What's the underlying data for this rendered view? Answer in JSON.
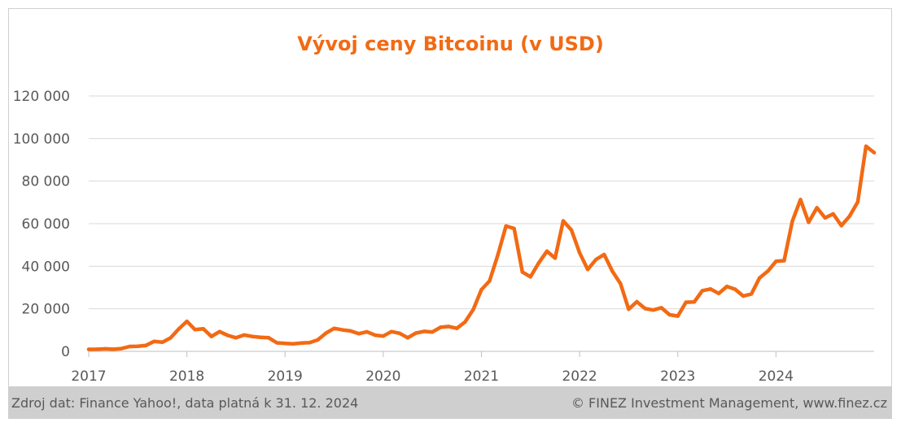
{
  "chart_data": {
    "type": "line",
    "title": "Vývoj ceny Bitcoinu (v USD)",
    "xlabel": "",
    "ylabel": "",
    "ylim": [
      0,
      120000
    ],
    "yticks": [
      0,
      20000,
      40000,
      60000,
      80000,
      100000,
      120000
    ],
    "ytick_labels": [
      "0",
      "20 000",
      "40 000",
      "60 000",
      "80 000",
      "100 000",
      "120 000"
    ],
    "xlim": [
      2017,
      2025
    ],
    "xticks": [
      2017,
      2018,
      2019,
      2020,
      2021,
      2022,
      2023,
      2024
    ],
    "xtick_labels": [
      "2017",
      "2018",
      "2019",
      "2020",
      "2021",
      "2022",
      "2023",
      "2024"
    ],
    "grid": true,
    "legend": "none",
    "series_color": "#f26a14",
    "series": [
      {
        "values": [
          [
            2017.0,
            970
          ],
          [
            2017.083,
            1000
          ],
          [
            2017.167,
            1200
          ],
          [
            2017.25,
            1000
          ],
          [
            2017.333,
            1300
          ],
          [
            2017.417,
            2300
          ],
          [
            2017.5,
            2400
          ],
          [
            2017.583,
            2800
          ],
          [
            2017.667,
            4700
          ],
          [
            2017.75,
            4300
          ],
          [
            2017.833,
            6300
          ],
          [
            2017.917,
            10500
          ],
          [
            2018.0,
            14100
          ],
          [
            2018.083,
            10200
          ],
          [
            2018.167,
            10600
          ],
          [
            2018.25,
            7000
          ],
          [
            2018.333,
            9300
          ],
          [
            2018.417,
            7500
          ],
          [
            2018.5,
            6400
          ],
          [
            2018.583,
            7700
          ],
          [
            2018.667,
            7000
          ],
          [
            2018.75,
            6600
          ],
          [
            2018.833,
            6400
          ],
          [
            2018.917,
            4000
          ],
          [
            2019.0,
            3700
          ],
          [
            2019.083,
            3500
          ],
          [
            2019.167,
            3900
          ],
          [
            2019.25,
            4100
          ],
          [
            2019.333,
            5400
          ],
          [
            2019.417,
            8600
          ],
          [
            2019.5,
            10800
          ],
          [
            2019.583,
            10100
          ],
          [
            2019.667,
            9600
          ],
          [
            2019.75,
            8300
          ],
          [
            2019.833,
            9200
          ],
          [
            2019.917,
            7600
          ],
          [
            2020.0,
            7200
          ],
          [
            2020.083,
            9300
          ],
          [
            2020.167,
            8500
          ],
          [
            2020.25,
            6400
          ],
          [
            2020.333,
            8600
          ],
          [
            2020.417,
            9400
          ],
          [
            2020.5,
            9100
          ],
          [
            2020.583,
            11300
          ],
          [
            2020.667,
            11700
          ],
          [
            2020.75,
            10800
          ],
          [
            2020.833,
            13800
          ],
          [
            2020.917,
            19700
          ],
          [
            2021.0,
            29000
          ],
          [
            2021.083,
            33100
          ],
          [
            2021.167,
            45200
          ],
          [
            2021.25,
            58900
          ],
          [
            2021.333,
            57700
          ],
          [
            2021.417,
            37300
          ],
          [
            2021.5,
            35000
          ],
          [
            2021.583,
            41500
          ],
          [
            2021.667,
            47100
          ],
          [
            2021.75,
            43800
          ],
          [
            2021.833,
            61300
          ],
          [
            2021.917,
            57000
          ],
          [
            2022.0,
            46300
          ],
          [
            2022.083,
            38500
          ],
          [
            2022.167,
            43200
          ],
          [
            2022.25,
            45500
          ],
          [
            2022.333,
            37700
          ],
          [
            2022.417,
            31800
          ],
          [
            2022.5,
            19800
          ],
          [
            2022.583,
            23300
          ],
          [
            2022.667,
            20100
          ],
          [
            2022.75,
            19400
          ],
          [
            2022.833,
            20500
          ],
          [
            2022.917,
            17200
          ],
          [
            2023.0,
            16600
          ],
          [
            2023.083,
            23100
          ],
          [
            2023.167,
            23200
          ],
          [
            2023.25,
            28500
          ],
          [
            2023.333,
            29300
          ],
          [
            2023.417,
            27200
          ],
          [
            2023.5,
            30500
          ],
          [
            2023.583,
            29200
          ],
          [
            2023.667,
            26000
          ],
          [
            2023.75,
            27000
          ],
          [
            2023.833,
            34500
          ],
          [
            2023.917,
            37700
          ],
          [
            2024.0,
            42300
          ],
          [
            2024.083,
            42600
          ],
          [
            2024.167,
            61200
          ],
          [
            2024.25,
            71300
          ],
          [
            2024.333,
            60600
          ],
          [
            2024.417,
            67500
          ],
          [
            2024.5,
            62700
          ],
          [
            2024.583,
            64600
          ],
          [
            2024.667,
            59100
          ],
          [
            2024.75,
            63500
          ],
          [
            2024.833,
            70200
          ],
          [
            2024.917,
            96400
          ],
          [
            2025.0,
            93400
          ]
        ]
      }
    ]
  },
  "footer": {
    "source": "Zdroj dat: Finance Yahoo!, data platná k 31. 12. 2024",
    "copyright": "© FINEZ Investment Management, www.finez.cz"
  }
}
